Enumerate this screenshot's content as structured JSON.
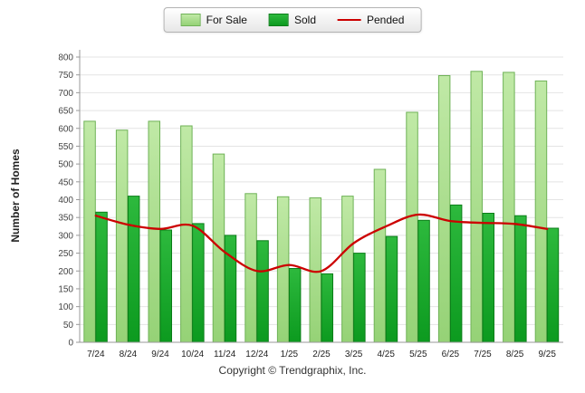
{
  "chart_data": {
    "type": "bar",
    "title": "",
    "categories": [
      "7/24",
      "8/24",
      "9/24",
      "10/24",
      "11/24",
      "12/24",
      "1/25",
      "2/25",
      "3/25",
      "4/25",
      "5/25",
      "6/25",
      "7/25",
      "8/25",
      "9/25"
    ],
    "series": [
      {
        "name": "For Sale",
        "type": "bar",
        "values": [
          620,
          595,
          620,
          607,
          528,
          417,
          408,
          405,
          410,
          485,
          645,
          748,
          760,
          757,
          733
        ],
        "fill_top": "#c0e9a6",
        "fill_bottom": "#95d276",
        "border": "#6fb257"
      },
      {
        "name": "Sold",
        "type": "bar",
        "values": [
          365,
          410,
          315,
          333,
          300,
          285,
          207,
          192,
          250,
          297,
          342,
          385,
          362,
          355,
          320
        ],
        "fill_top": "#2db93d",
        "fill_bottom": "#0c9a1f",
        "border": "#0a7d18"
      },
      {
        "name": "Pended",
        "type": "line",
        "values": [
          355,
          330,
          318,
          327,
          253,
          200,
          217,
          200,
          278,
          325,
          358,
          340,
          335,
          332,
          318
        ],
        "color": "#cc0000"
      }
    ],
    "xlabel": "",
    "ylabel": "Number of Homes",
    "ylim": [
      0,
      800
    ],
    "ytick_step": 50,
    "grid": true,
    "legend_position": "top-center"
  },
  "footer": {
    "copyright": "Copyright © Trendgraphix, Inc."
  }
}
